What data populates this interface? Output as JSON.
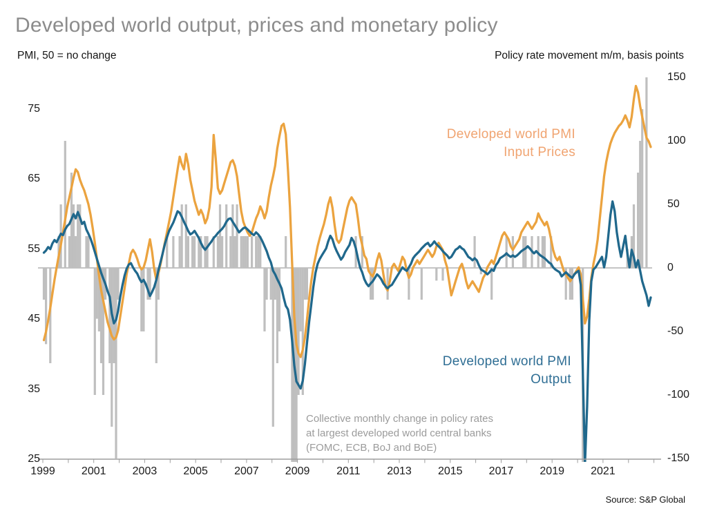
{
  "page": {
    "title": "Developed world output, prices and monetary policy",
    "source": "Source: S&P Global"
  },
  "chart_data": {
    "type": "line+bar",
    "title": "Developed world output, prices and monetary policy",
    "left_axis": {
      "label": "PMI, 50 = no change",
      "ticks": [
        75,
        65,
        55,
        45,
        35,
        25
      ],
      "range": [
        25,
        75
      ]
    },
    "right_axis": {
      "label": "Policy rate movement m/m, basis points",
      "ticks": [
        150,
        100,
        50,
        0,
        -50,
        -100,
        -150
      ],
      "range": [
        -150,
        150
      ]
    },
    "x_axis": {
      "tick_years_labeled": [
        1999,
        2001,
        2003,
        2005,
        2007,
        2009,
        2011,
        2013,
        2015,
        2017,
        2019,
        2021
      ],
      "minor_tick_every_year": true,
      "start": 1999,
      "end": 2022.92
    },
    "grid": "off",
    "legend_position": "annotated-inline",
    "colors": {
      "input_prices_line": "#EBA33F",
      "output_line": "#20688C",
      "bars": "#BFBFBF",
      "zero_line": "#B0B0B0",
      "axis": "#9D9D9D",
      "title_gray": "#8C8C8C",
      "note_gray": "#9B9B9B",
      "input_label": "#F0A471",
      "output_label": "#2F6E94"
    },
    "series": [
      {
        "name": "Developed world PMI Input Prices",
        "label_lines": [
          "Developed world PMI",
          "Input Prices"
        ],
        "axis": "left",
        "frequency": "monthly",
        "start_year": 1999,
        "values": [
          42.0,
          43.2,
          44.8,
          46.6,
          48.6,
          50.6,
          52.4,
          54.0,
          55.6,
          57.4,
          59.2,
          61.0,
          62.4,
          63.8,
          65.2,
          66.4,
          66.0,
          64.9,
          64.1,
          63.4,
          62.4,
          61.4,
          59.9,
          58.0,
          55.9,
          53.6,
          51.2,
          49.1,
          47.6,
          46.1,
          44.6,
          43.6,
          42.6,
          42.1,
          42.4,
          43.4,
          45.4,
          47.4,
          49.4,
          51.4,
          52.9,
          54.4,
          54.9,
          54.4,
          53.6,
          52.6,
          52.1,
          52.4,
          53.4,
          54.9,
          56.4,
          54.6,
          52.1,
          50.6,
          51.6,
          52.9,
          54.4,
          55.9,
          57.4,
          58.9,
          60.4,
          62.4,
          64.4,
          66.4,
          68.2,
          67.1,
          66.4,
          68.6,
          67.1,
          64.9,
          63.4,
          61.9,
          60.9,
          59.9,
          60.6,
          59.9,
          58.7,
          59.4,
          60.9,
          63.9,
          71.3,
          67.9,
          63.7,
          62.9,
          63.4,
          64.4,
          65.4,
          66.4,
          67.4,
          67.7,
          66.9,
          65.4,
          62.9,
          60.4,
          58.9,
          58.1,
          57.4,
          56.9,
          57.4,
          58.4,
          59.4,
          60.1,
          61.1,
          60.4,
          59.4,
          60.4,
          62.4,
          64.1,
          65.4,
          66.9,
          69.4,
          71.1,
          72.6,
          72.9,
          71.4,
          66.4,
          60.9,
          52.9,
          45.4,
          41.4,
          40.1,
          39.6,
          40.6,
          42.4,
          44.9,
          47.9,
          50.4,
          52.4,
          53.9,
          55.4,
          56.6,
          57.6,
          58.6,
          59.9,
          61.4,
          62.4,
          60.9,
          58.4,
          56.4,
          55.9,
          56.4,
          57.9,
          59.4,
          60.9,
          61.9,
          62.4,
          61.9,
          61.4,
          59.4,
          56.9,
          55.6,
          54.1,
          53.6,
          51.9,
          51.4,
          51.1,
          51.9,
          53.4,
          54.4,
          53.4,
          51.4,
          49.6,
          49.1,
          50.4,
          52.4,
          52.9,
          52.4,
          51.9,
          52.9,
          53.9,
          53.4,
          51.9,
          50.9,
          51.4,
          52.4,
          52.9,
          53.4,
          52.9,
          53.4,
          53.9,
          54.4,
          54.9,
          54.4,
          53.9,
          54.4,
          55.4,
          55.9,
          55.4,
          54.9,
          53.4,
          52.4,
          50.4,
          48.4,
          49.4,
          50.4,
          51.4,
          52.4,
          52.9,
          51.9,
          50.4,
          49.4,
          49.9,
          50.4,
          49.9,
          49.4,
          48.9,
          49.9,
          50.9,
          51.4,
          52.4,
          52.9,
          53.4,
          52.9,
          53.9,
          54.9,
          55.9,
          56.9,
          57.4,
          56.9,
          56.4,
          55.4,
          54.9,
          55.4,
          55.9,
          56.4,
          57.4,
          57.9,
          58.4,
          58.9,
          58.4,
          57.9,
          58.4,
          58.9,
          60.1,
          59.4,
          58.9,
          58.4,
          58.9,
          57.9,
          56.4,
          54.9,
          53.9,
          53.4,
          53.9,
          52.9,
          51.9,
          51.4,
          50.9,
          50.4,
          50.9,
          51.4,
          51.9,
          52.4,
          51.4,
          47.9,
          44.4,
          45.4,
          47.9,
          50.9,
          52.9,
          54.4,
          56.4,
          59.4,
          62.4,
          65.4,
          67.4,
          68.9,
          70.1,
          70.9,
          71.6,
          72.1,
          72.6,
          72.9,
          73.4,
          74.1,
          73.4,
          72.4,
          73.9,
          76.4,
          78.3,
          77.4,
          75.4,
          73.9,
          72.4,
          70.9,
          70.4,
          69.6
        ]
      },
      {
        "name": "Developed world PMI Output",
        "label_lines": [
          "Developed world PMI",
          "Output"
        ],
        "axis": "left",
        "frequency": "monthly",
        "start_year": 1999,
        "values": [
          54.5,
          54.8,
          55.3,
          55.0,
          55.8,
          56.3,
          56.0,
          56.6,
          57.2,
          57.0,
          57.8,
          58.3,
          58.6,
          59.3,
          60.0,
          59.4,
          60.3,
          59.5,
          58.6,
          58.9,
          57.8,
          57.2,
          56.5,
          55.6,
          54.6,
          53.6,
          52.6,
          51.6,
          50.8,
          50.0,
          49.0,
          48.2,
          45.8,
          44.4,
          44.9,
          46.2,
          48.2,
          49.8,
          51.2,
          52.2,
          52.8,
          53.0,
          52.4,
          51.9,
          51.5,
          50.8,
          50.3,
          50.6,
          50.0,
          49.2,
          48.3,
          48.9,
          49.6,
          50.6,
          52.0,
          53.2,
          54.4,
          55.7,
          56.7,
          57.6,
          58.2,
          58.8,
          59.6,
          60.4,
          60.2,
          59.6,
          58.9,
          58.3,
          57.6,
          57.1,
          57.3,
          57.6,
          57.1,
          56.6,
          55.9,
          55.3,
          54.9,
          55.3,
          55.7,
          56.1,
          56.6,
          56.9,
          57.3,
          57.6,
          57.9,
          58.3,
          58.9,
          59.3,
          59.4,
          58.9,
          58.4,
          57.9,
          57.4,
          57.7,
          58.0,
          58.1,
          57.8,
          57.5,
          57.2,
          57.0,
          57.4,
          57.1,
          56.7,
          56.1,
          55.4,
          54.7,
          53.8,
          53.1,
          51.9,
          51.4,
          50.7,
          50.1,
          49.4,
          48.1,
          46.9,
          46.4,
          44.9,
          41.9,
          38.4,
          36.1,
          35.6,
          35.1,
          36.2,
          38.6,
          41.6,
          44.6,
          47.1,
          49.6,
          51.6,
          52.9,
          53.6,
          54.1,
          54.6,
          55.1,
          56.1,
          56.9,
          56.4,
          55.4,
          54.7,
          54.1,
          53.5,
          53.9,
          54.6,
          55.1,
          55.6,
          56.6,
          56.1,
          55.1,
          53.7,
          52.4,
          51.7,
          50.7,
          50.1,
          49.7,
          50.1,
          50.4,
          50.9,
          51.4,
          51.1,
          50.7,
          50.1,
          49.7,
          49.4,
          49.7,
          49.9,
          50.4,
          50.9,
          51.4,
          51.9,
          52.4,
          52.1,
          51.9,
          52.4,
          52.9,
          53.7,
          54.1,
          54.4,
          54.7,
          55.1,
          55.4,
          55.7,
          55.9,
          55.4,
          55.7,
          56.1,
          55.7,
          55.4,
          55.1,
          54.7,
          54.4,
          54.1,
          53.7,
          53.9,
          54.4,
          54.9,
          55.1,
          55.4,
          55.1,
          54.9,
          54.4,
          53.9,
          53.7,
          53.4,
          53.7,
          53.4,
          52.7,
          52.1,
          51.9,
          51.7,
          51.4,
          51.7,
          52.1,
          51.9,
          52.7,
          53.1,
          53.7,
          53.9,
          54.1,
          54.4,
          54.1,
          53.9,
          54.1,
          53.9,
          54.1,
          54.4,
          54.7,
          54.9,
          55.1,
          55.4,
          55.1,
          54.7,
          54.4,
          54.7,
          54.4,
          54.1,
          53.9,
          53.7,
          53.4,
          53.1,
          52.9,
          52.4,
          52.1,
          51.9,
          51.7,
          51.1,
          51.4,
          51.7,
          51.4,
          51.1,
          50.9,
          51.4,
          51.7,
          51.9,
          49.9,
          37.5,
          24.3,
          32.5,
          44.8,
          50.4,
          52.1,
          52.4,
          52.9,
          53.4,
          53.9,
          52.4,
          53.9,
          56.9,
          59.9,
          61.8,
          60.4,
          57.4,
          55.4,
          53.9,
          55.4,
          56.9,
          54.4,
          52.4,
          54.9,
          53.9,
          52.4,
          53.4,
          51.9,
          50.4,
          49.4,
          48.4,
          46.9,
          48.1
        ]
      }
    ],
    "bars": {
      "name": "Collective monthly change in policy rates at largest developed world central banks (FOMC, ECB, BoJ and BoE)",
      "axis": "right",
      "unit": "basis points",
      "points": [
        [
          1999,
          1,
          -25
        ],
        [
          1999,
          2,
          -60
        ],
        [
          1999,
          4,
          -75
        ],
        [
          1999,
          8,
          25
        ],
        [
          1999,
          9,
          50
        ],
        [
          1999,
          11,
          100
        ],
        [
          2000,
          1,
          25
        ],
        [
          2000,
          2,
          75
        ],
        [
          2000,
          3,
          50
        ],
        [
          2000,
          4,
          25
        ],
        [
          2000,
          5,
          50
        ],
        [
          2000,
          6,
          50
        ],
        [
          2000,
          9,
          25
        ],
        [
          2000,
          10,
          25
        ],
        [
          2001,
          1,
          -100
        ],
        [
          2001,
          2,
          -40
        ],
        [
          2001,
          3,
          -50
        ],
        [
          2001,
          4,
          -75
        ],
        [
          2001,
          5,
          -100
        ],
        [
          2001,
          6,
          -25
        ],
        [
          2001,
          8,
          -75
        ],
        [
          2001,
          9,
          -125
        ],
        [
          2001,
          10,
          -75
        ],
        [
          2001,
          11,
          -150
        ],
        [
          2001,
          12,
          -25
        ],
        [
          2002,
          11,
          -50
        ],
        [
          2002,
          12,
          -50
        ],
        [
          2003,
          2,
          -25
        ],
        [
          2003,
          3,
          -25
        ],
        [
          2003,
          6,
          -75
        ],
        [
          2003,
          7,
          -25
        ],
        [
          2003,
          11,
          25
        ],
        [
          2004,
          2,
          25
        ],
        [
          2004,
          5,
          25
        ],
        [
          2004,
          6,
          50
        ],
        [
          2004,
          8,
          50
        ],
        [
          2004,
          9,
          25
        ],
        [
          2004,
          11,
          25
        ],
        [
          2004,
          12,
          25
        ],
        [
          2005,
          2,
          25
        ],
        [
          2005,
          3,
          25
        ],
        [
          2005,
          5,
          25
        ],
        [
          2005,
          6,
          25
        ],
        [
          2005,
          9,
          25
        ],
        [
          2005,
          11,
          25
        ],
        [
          2005,
          12,
          50
        ],
        [
          2006,
          1,
          25
        ],
        [
          2006,
          3,
          50
        ],
        [
          2006,
          5,
          25
        ],
        [
          2006,
          6,
          50
        ],
        [
          2006,
          7,
          25
        ],
        [
          2006,
          8,
          50
        ],
        [
          2006,
          10,
          25
        ],
        [
          2006,
          11,
          25
        ],
        [
          2006,
          12,
          25
        ],
        [
          2007,
          1,
          25
        ],
        [
          2007,
          3,
          25
        ],
        [
          2007,
          5,
          25
        ],
        [
          2007,
          6,
          25
        ],
        [
          2007,
          7,
          25
        ],
        [
          2007,
          9,
          -50
        ],
        [
          2007,
          10,
          -25
        ],
        [
          2007,
          12,
          -25
        ],
        [
          2008,
          1,
          -125
        ],
        [
          2008,
          2,
          -25
        ],
        [
          2008,
          3,
          -75
        ],
        [
          2008,
          4,
          -50
        ],
        [
          2008,
          7,
          25
        ],
        [
          2008,
          10,
          -200
        ],
        [
          2008,
          11,
          -200
        ],
        [
          2008,
          12,
          -250
        ],
        [
          2009,
          1,
          -100
        ],
        [
          2009,
          2,
          -50
        ],
        [
          2009,
          3,
          -100
        ],
        [
          2009,
          4,
          -25
        ],
        [
          2009,
          5,
          -25
        ],
        [
          2011,
          4,
          25
        ],
        [
          2011,
          7,
          25
        ],
        [
          2011,
          11,
          -25
        ],
        [
          2011,
          12,
          -25
        ],
        [
          2012,
          7,
          -25
        ],
        [
          2013,
          5,
          -25
        ],
        [
          2013,
          11,
          -25
        ],
        [
          2014,
          6,
          -10
        ],
        [
          2014,
          9,
          -10
        ],
        [
          2015,
          12,
          25
        ],
        [
          2016,
          3,
          -5
        ],
        [
          2016,
          8,
          -25
        ],
        [
          2017,
          3,
          25
        ],
        [
          2017,
          6,
          25
        ],
        [
          2017,
          11,
          25
        ],
        [
          2017,
          12,
          25
        ],
        [
          2018,
          3,
          25
        ],
        [
          2018,
          6,
          25
        ],
        [
          2018,
          8,
          25
        ],
        [
          2018,
          9,
          25
        ],
        [
          2018,
          12,
          25
        ],
        [
          2019,
          7,
          -25
        ],
        [
          2019,
          9,
          -25
        ],
        [
          2019,
          10,
          -25
        ],
        [
          2020,
          3,
          -215
        ],
        [
          2021,
          12,
          15
        ],
        [
          2022,
          2,
          25
        ],
        [
          2022,
          3,
          50
        ],
        [
          2022,
          5,
          75
        ],
        [
          2022,
          6,
          100
        ],
        [
          2022,
          7,
          125
        ],
        [
          2022,
          9,
          150
        ]
      ],
      "note_lines": [
        "Collective monthly change in policy rates",
        "at largest developed world central banks",
        "(FOMC, ECB, BoJ and BoE)"
      ]
    }
  }
}
